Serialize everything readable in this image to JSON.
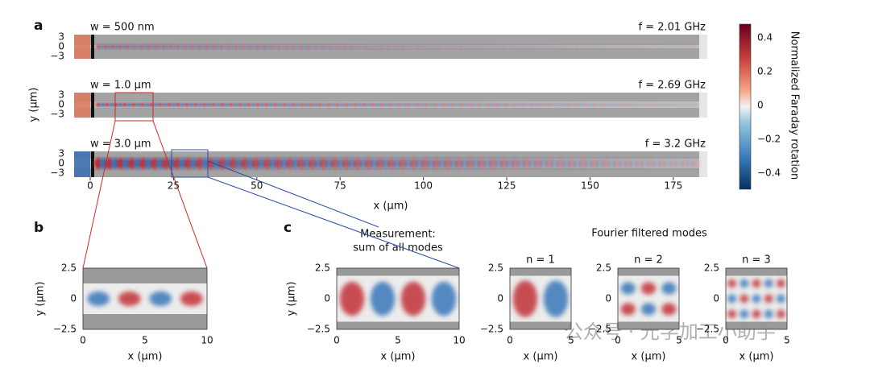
{
  "panel_a": {
    "label": "a",
    "rows": [
      {
        "width": "w = 500 nm",
        "frequency": "f = 2.01 GHz"
      },
      {
        "width": "w = 1.0 µm",
        "frequency": "f = 2.69 GHz"
      },
      {
        "width": "w = 3.0 µm",
        "frequency": "f = 3.2 GHz"
      }
    ],
    "yticks": [
      "3",
      "0",
      "−3"
    ],
    "ylabel": "y (µm)",
    "xticks": [
      "0",
      "25",
      "50",
      "75",
      "100",
      "125",
      "150",
      "175"
    ],
    "xlabel": "x (µm)"
  },
  "colorbar": {
    "label": "Normalized Faraday rotation",
    "ticks": [
      "0.4",
      "0.2",
      "0",
      "−0.2",
      "−0.4"
    ]
  },
  "panel_b": {
    "label": "b",
    "yticks": [
      "2.5",
      "0",
      "−2.5"
    ],
    "ylabel": "y (µm)",
    "xticks": [
      "0",
      "5",
      "10"
    ],
    "xlabel": "x (µm)"
  },
  "panel_c": {
    "label": "c",
    "measurement": [
      "Measurement:",
      "sum of all modes"
    ],
    "filtered_title": "Fourier filtered modes",
    "yticks": [
      "2.5",
      "0",
      "−2.5"
    ],
    "ylabel": "y (µm)",
    "xticks": [
      "0",
      "5",
      "10"
    ],
    "xlabel": "x (µm)",
    "modes": [
      {
        "title": "n = 1",
        "xticks": [
          "0",
          "5"
        ],
        "yticks": [
          "2.5",
          "0",
          "−2.5"
        ],
        "xlabel": "x (µm)"
      },
      {
        "title": "n = 2",
        "xticks": [
          "0",
          "5"
        ],
        "yticks": [
          "2.5",
          "0",
          "−2.5"
        ],
        "xlabel": "x (µm)"
      },
      {
        "title": "n = 3",
        "xticks": [
          "0",
          "5"
        ],
        "yticks": [
          "2.5",
          "0",
          "−2.5"
        ],
        "xlabel": "x (µm)"
      }
    ]
  },
  "watermark": "公众号 · 光学加工小助手"
}
